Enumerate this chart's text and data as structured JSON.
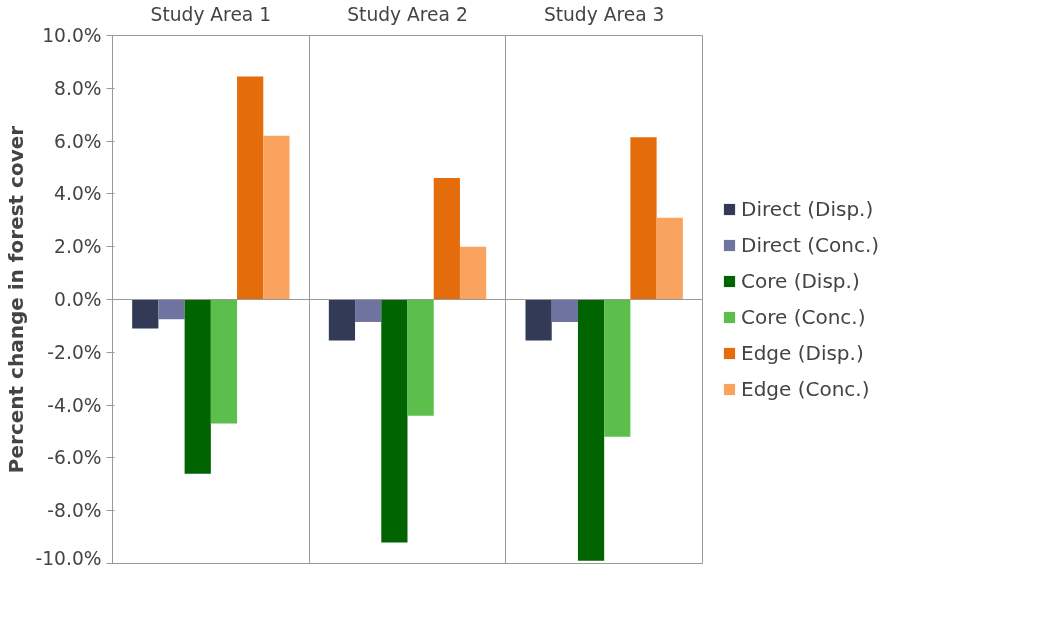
{
  "chart_data": {
    "type": "bar",
    "ylabel": "Percent change in forest cover",
    "categories": [
      "Study Area 1",
      "Study Area 2",
      "Study Area 3"
    ],
    "series": [
      {
        "name": "Direct (Disp.)",
        "color": "#333a56",
        "values": [
          -1.1,
          -1.55,
          -1.55
        ]
      },
      {
        "name": "Direct (Conc.)",
        "color": "#6f73a0",
        "values": [
          -0.75,
          -0.85,
          -0.85
        ]
      },
      {
        "name": "Core (Disp.)",
        "color": "#006400",
        "values": [
          -6.6,
          -9.2,
          -9.9
        ]
      },
      {
        "name": "Core (Conc.)",
        "color": "#5cbf4c",
        "values": [
          -4.7,
          -4.4,
          -5.2
        ]
      },
      {
        "name": "Edge (Disp.)",
        "color": "#e46c0a",
        "values": [
          8.45,
          4.6,
          6.15
        ]
      },
      {
        "name": "Edge (Conc.)",
        "color": "#f9a35e",
        "values": [
          6.2,
          2.0,
          3.1
        ]
      }
    ],
    "ylim": [
      -10,
      10
    ],
    "yticks": [
      {
        "value": -10,
        "label": "-10.0%"
      },
      {
        "value": -8,
        "label": "-8.0%"
      },
      {
        "value": -6,
        "label": "-6.0%"
      },
      {
        "value": -4,
        "label": "-4.0%"
      },
      {
        "value": -2,
        "label": "-2.0%"
      },
      {
        "value": 0,
        "label": "0.0%"
      },
      {
        "value": 2,
        "label": "2.0%"
      },
      {
        "value": 4,
        "label": "4.0%"
      },
      {
        "value": 6,
        "label": "6.0%"
      },
      {
        "value": 8,
        "label": "8.0%"
      },
      {
        "value": 10,
        "label": "10.0%"
      }
    ],
    "ref_lines": [
      {
        "axis": "y",
        "value": 0,
        "color": "#999999"
      }
    ],
    "grid": "x",
    "legend": "right"
  }
}
